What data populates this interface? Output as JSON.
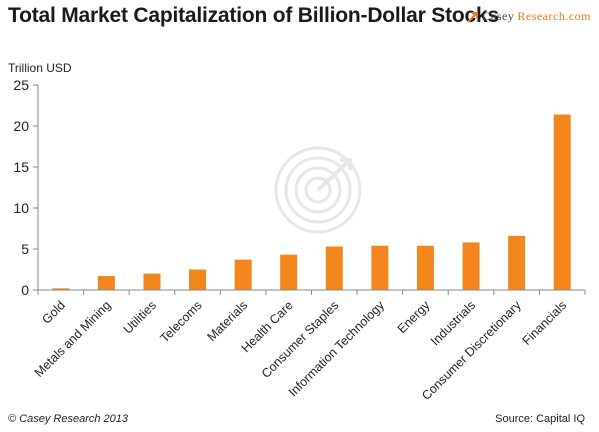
{
  "header": {
    "title": "Total Market Capitalization of Billion-Dollar Stocks",
    "brand_part1": "Casey",
    "brand_part2": "Research.com",
    "accent_color": "#ee7f1b"
  },
  "footer": {
    "copyright": "© Casey Research 2013",
    "source": "Source: Capital IQ"
  },
  "chart_data": {
    "type": "bar",
    "title": "Total Market Capitalization of Billion-Dollar Stocks",
    "ylabel": "Trillion USD",
    "xlabel": "",
    "ylim": [
      0,
      25
    ],
    "yticks": [
      0,
      5,
      10,
      15,
      20,
      25
    ],
    "grid": false,
    "legend": "none",
    "bar_color": "#f2851c",
    "categories": [
      "Gold",
      "Metals and Mining",
      "Utilities",
      "Telecoms",
      "Materials",
      "Health Care",
      "Consumer Staples",
      "Information Technology",
      "Energy",
      "Industrials",
      "Consumer Discretionary",
      "Financials"
    ],
    "values": [
      0.2,
      1.7,
      2.0,
      2.5,
      3.7,
      4.3,
      5.3,
      5.4,
      5.4,
      5.8,
      6.6,
      21.4
    ]
  }
}
